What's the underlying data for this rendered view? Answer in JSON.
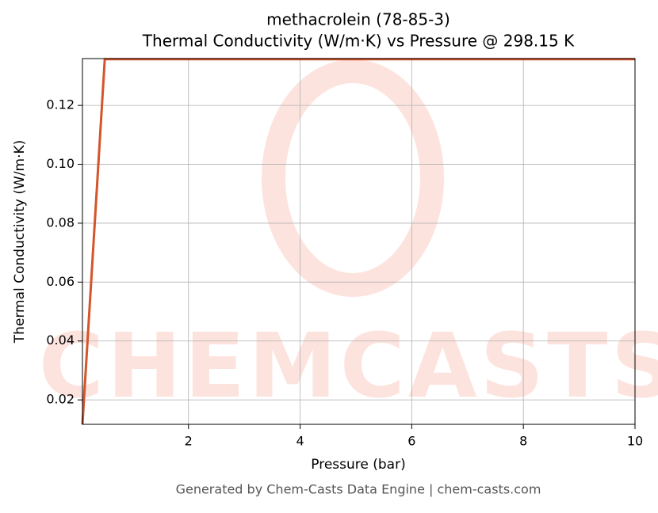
{
  "chart_data": {
    "type": "line",
    "title": "methacrolein (78-85-3)",
    "subtitle": "Thermal Conductivity (W/m·K) vs Pressure @ 298.15 K",
    "x_label": "Pressure (bar)",
    "y_label": "Thermal Conductivity (W/m·K)",
    "watermark": "CHEMCASTS",
    "footer": "Generated by Chem-Casts Data Engine | chem-casts.com",
    "x": [
      0.1,
      0.5,
      10
    ],
    "series": [
      {
        "name": "Thermal Conductivity",
        "color": "#d4552a",
        "values": [
          0.0117,
          0.1357,
          0.1357
        ]
      }
    ],
    "xlim": [
      0.1,
      10
    ],
    "ylim": [
      0.0117,
      0.1359
    ],
    "xticks": [
      2,
      4,
      6,
      8,
      10
    ],
    "yticks": [
      0.02,
      0.04,
      0.06,
      0.08,
      {
        "value": 0.1,
        "label": "0.10"
      },
      0.12
    ],
    "grid": true
  }
}
